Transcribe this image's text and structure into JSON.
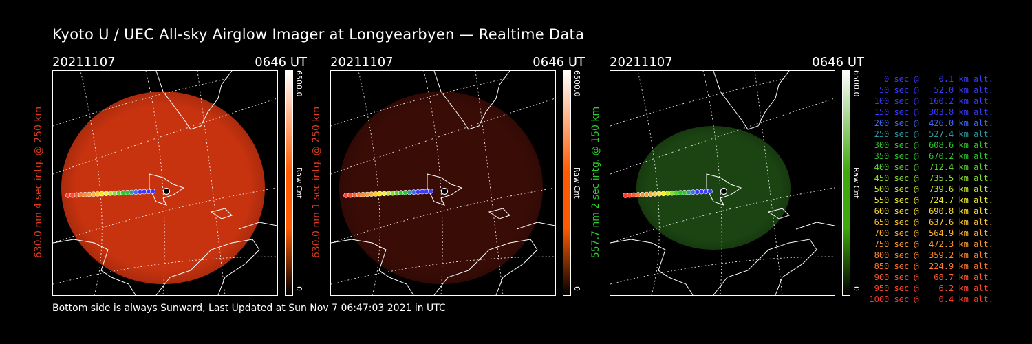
{
  "title": "Kyoto U / UEC All-sky Airglow Imager at Longyearbyen — Realtime Data",
  "panels": [
    {
      "date": "20211107",
      "time": "0646 UT",
      "ylabel": "630.0 nm 4 sec intg. @ 250 km",
      "label_color": "#e03a1e",
      "cb_max": "6500.0",
      "cb_min": "0",
      "cb_unit": "Raw Cnt",
      "cb_color": "#ff5a00",
      "image_color": "#c8330f",
      "brightness": "bright"
    },
    {
      "date": "20211107",
      "time": "0646 UT",
      "ylabel": "630.0 nm 1 sec intg. @ 250 km",
      "label_color": "#e03a1e",
      "cb_max": "6500.0",
      "cb_min": "0",
      "cb_unit": "Raw Cnt",
      "cb_color": "#ff5a00",
      "image_color": "#3a0c06",
      "brightness": "dim"
    },
    {
      "date": "20211107",
      "time": "0646 UT",
      "ylabel": "557.7 nm 2 sec intg. @ 150 km",
      "label_color": "#2ecc2e",
      "cb_max": "6500.0",
      "cb_min": "0",
      "cb_unit": "Raw Cnt",
      "cb_color": "#3fa80a",
      "image_color": "#1b4412",
      "brightness": "green"
    }
  ],
  "footer": "Bottom side is always Sunward, Last Updated at Sun Nov  7 06:47:03 2021 in UTC",
  "legend": [
    {
      "text": "   0 sec @    0.1 km alt.",
      "color": "#3a3aff"
    },
    {
      "text": "  50 sec @   52.0 km alt.",
      "color": "#3a3aff"
    },
    {
      "text": " 100 sec @  160.2 km alt.",
      "color": "#3a3aff"
    },
    {
      "text": " 150 sec @  303.8 km alt.",
      "color": "#3a3aff"
    },
    {
      "text": " 200 sec @  426.0 km alt.",
      "color": "#3a6aff"
    },
    {
      "text": " 250 sec @  527.4 km alt.",
      "color": "#2e9aa0"
    },
    {
      "text": " 300 sec @  608.6 km alt.",
      "color": "#2ec82e"
    },
    {
      "text": " 350 sec @  670.2 km alt.",
      "color": "#2ec82e"
    },
    {
      "text": " 400 sec @  712.4 km alt.",
      "color": "#5ad22e"
    },
    {
      "text": " 450 sec @  735.5 km alt.",
      "color": "#8ade2e"
    },
    {
      "text": " 500 sec @  739.6 km alt.",
      "color": "#c8e62e"
    },
    {
      "text": " 550 sec @  724.7 km alt.",
      "color": "#f0f02e"
    },
    {
      "text": " 600 sec @  690.8 km alt.",
      "color": "#ffe02e"
    },
    {
      "text": " 650 sec @  637.6 km alt.",
      "color": "#ffc82e"
    },
    {
      "text": " 700 sec @  564.9 km alt.",
      "color": "#ffb02e"
    },
    {
      "text": " 750 sec @  472.3 km alt.",
      "color": "#ff9a2e"
    },
    {
      "text": " 800 sec @  359.2 km alt.",
      "color": "#ff8a2e"
    },
    {
      "text": " 850 sec @  224.9 km alt.",
      "color": "#ff7a2e"
    },
    {
      "text": " 900 sec @   68.7 km alt.",
      "color": "#ff5a2e"
    },
    {
      "text": " 950 sec @    6.2 km alt.",
      "color": "#ff4a2e"
    },
    {
      "text": "1000 sec @    0.4 km alt.",
      "color": "#ff3a2e"
    }
  ]
}
